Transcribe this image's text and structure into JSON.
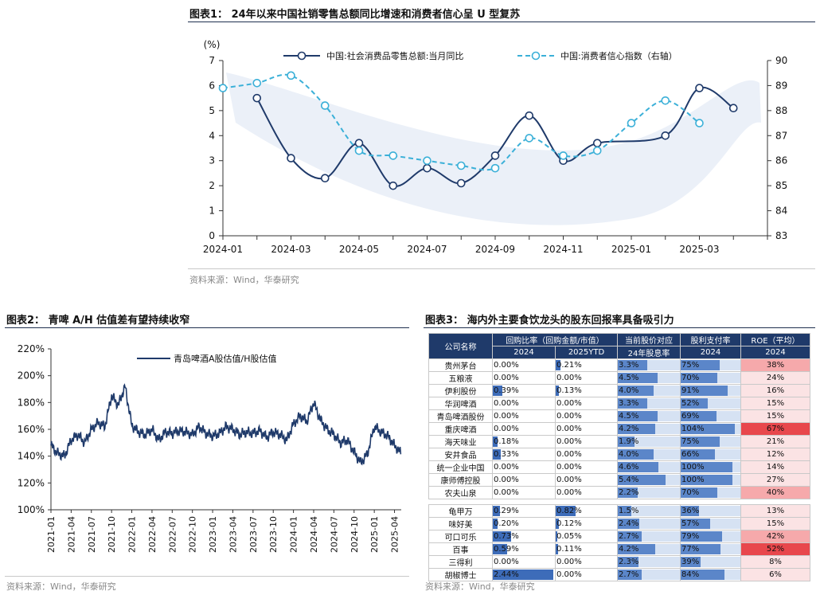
{
  "figure1": {
    "title": "图表1： 24年以来中国社销零售总额同比增速和消费者信心呈 U 型复苏",
    "source": "资料来源：Wind，华泰研究",
    "chart_data": {
      "type": "line",
      "y_unit_label": "(%)",
      "ylim": [
        0,
        7
      ],
      "y_ticks": [
        0,
        1,
        2,
        3,
        4,
        5,
        6,
        7
      ],
      "y2lim": [
        83,
        90
      ],
      "y2_ticks": [
        83,
        84,
        85,
        86,
        87,
        88,
        89,
        90
      ],
      "x_ticks": [
        "2024-01",
        "2024-03",
        "2024-05",
        "2024-07",
        "2024-09",
        "2024-11",
        "2025-01",
        "2025-03"
      ],
      "legend_position": "top-center",
      "series": [
        {
          "name": "中国:社会消费品零售总额:当月同比",
          "axis": "left",
          "color": "#1f3a6a",
          "x": [
            "2024-02",
            "2024-03",
            "2024-04",
            "2024-05",
            "2024-06",
            "2024-07",
            "2024-08",
            "2024-09",
            "2024-10",
            "2024-11",
            "2024-12",
            "2025-02",
            "2025-03",
            "2025-04"
          ],
          "values": [
            5.5,
            3.1,
            2.3,
            3.7,
            2.0,
            2.7,
            2.1,
            3.2,
            4.8,
            3.0,
            3.7,
            4.0,
            5.9,
            5.1
          ]
        },
        {
          "name": "中国:消费者信心指数（右轴）",
          "axis": "right",
          "color": "#3bb0d8",
          "x": [
            "2024-01",
            "2024-02",
            "2024-03",
            "2024-04",
            "2024-05",
            "2024-06",
            "2024-07",
            "2024-08",
            "2024-09",
            "2024-10",
            "2024-11",
            "2024-12",
            "2025-01",
            "2025-02",
            "2025-03"
          ],
          "values": [
            88.9,
            89.1,
            89.4,
            88.2,
            86.4,
            86.2,
            86.0,
            85.8,
            85.7,
            86.9,
            86.2,
            86.4,
            87.5,
            88.4,
            87.5
          ]
        }
      ]
    }
  },
  "figure2": {
    "title": "图表2： 青啤 A/H 估值差有望持续收窄",
    "source": "资料来源：Wind，华泰研究",
    "chart_data": {
      "type": "line",
      "ylim": [
        100,
        220
      ],
      "y_ticks": [
        "100%",
        "120%",
        "140%",
        "160%",
        "180%",
        "200%",
        "220%"
      ],
      "x_ticks": [
        "2021-01",
        "2021-04",
        "2021-07",
        "2021-10",
        "2022-01",
        "2022-04",
        "2022-07",
        "2022-10",
        "2023-01",
        "2023-04",
        "2023-07",
        "2023-10",
        "2024-01",
        "2024-04",
        "2024-07",
        "2024-10",
        "2025-01",
        "2025-04"
      ],
      "legend_position": "top-left",
      "series": [
        {
          "name": "青岛啤酒A股估值/H股估值",
          "color": "#1f3a6a",
          "x": [
            "2021-01",
            "2021-02",
            "2021-03",
            "2021-04",
            "2021-05",
            "2021-06",
            "2021-07",
            "2021-08",
            "2021-09",
            "2021-10",
            "2021-11",
            "2021-12",
            "2022-01",
            "2022-02",
            "2022-03",
            "2022-04",
            "2022-05",
            "2022-06",
            "2022-07",
            "2022-08",
            "2022-09",
            "2022-10",
            "2022-11",
            "2022-12",
            "2023-01",
            "2023-02",
            "2023-03",
            "2023-04",
            "2023-05",
            "2023-06",
            "2023-07",
            "2023-08",
            "2023-09",
            "2023-10",
            "2023-11",
            "2023-12",
            "2024-01",
            "2024-02",
            "2024-03",
            "2024-04",
            "2024-05",
            "2024-06",
            "2024-07",
            "2024-08",
            "2024-09",
            "2024-10",
            "2024-11",
            "2024-12",
            "2025-01",
            "2025-02",
            "2025-03",
            "2025-04",
            "2025-05"
          ],
          "values": [
            148,
            142,
            140,
            152,
            156,
            150,
            160,
            165,
            162,
            185,
            178,
            192,
            163,
            158,
            156,
            160,
            152,
            158,
            157,
            159,
            158,
            156,
            162,
            157,
            155,
            157,
            162,
            160,
            156,
            158,
            157,
            159,
            154,
            158,
            156,
            152,
            164,
            170,
            166,
            180,
            167,
            160,
            156,
            150,
            152,
            143,
            135,
            142,
            162,
            158,
            155,
            148,
            142
          ]
        }
      ]
    }
  },
  "figure3": {
    "title": "图表3： 海内外主要食饮龙头的股东回报率具备吸引力",
    "source": "资料来源：Wind，华泰研究",
    "header_row1": [
      "公司名称",
      "回购比率（回购金额/市值）",
      "当前股价对应",
      "股利支付率",
      "ROE（平均）"
    ],
    "header_row2": [
      "2024",
      "2025YTD",
      "24年股息率",
      "2024",
      "2024"
    ],
    "group1": [
      {
        "name": "贵州茅台",
        "bb24": "0.00%",
        "bb25": "0.21%",
        "dy": "3.3%",
        "payout": "75%",
        "roe": "38%"
      },
      {
        "name": "五粮液",
        "bb24": "0.00%",
        "bb25": "0.00%",
        "dy": "4.5%",
        "payout": "70%",
        "roe": "24%"
      },
      {
        "name": "伊利股份",
        "bb24": "0.39%",
        "bb25": "0.13%",
        "dy": "4.0%",
        "payout": "91%",
        "roe": "16%"
      },
      {
        "name": "华润啤酒",
        "bb24": "0.00%",
        "bb25": "0.00%",
        "dy": "3.3%",
        "payout": "52%",
        "roe": "15%"
      },
      {
        "name": "青岛啤酒股份",
        "bb24": "0.00%",
        "bb25": "0.00%",
        "dy": "4.5%",
        "payout": "69%",
        "roe": "15%"
      },
      {
        "name": "重庆啤酒",
        "bb24": "0.00%",
        "bb25": "0.00%",
        "dy": "4.2%",
        "payout": "104%",
        "roe": "67%"
      },
      {
        "name": "海天味业",
        "bb24": "0.18%",
        "bb25": "0.00%",
        "dy": "1.9%",
        "payout": "75%",
        "roe": "21%"
      },
      {
        "name": "安井食品",
        "bb24": "0.33%",
        "bb25": "0.00%",
        "dy": "4.0%",
        "payout": "66%",
        "roe": "12%"
      },
      {
        "name": "统一企业中国",
        "bb24": "0.00%",
        "bb25": "0.00%",
        "dy": "4.6%",
        "payout": "100%",
        "roe": "14%"
      },
      {
        "name": "康师傅控股",
        "bb24": "0.00%",
        "bb25": "0.00%",
        "dy": "5.4%",
        "payout": "100%",
        "roe": "27%"
      },
      {
        "name": "农夫山泉",
        "bb24": "0.00%",
        "bb25": "0.00%",
        "dy": "2.2%",
        "payout": "70%",
        "roe": "40%"
      }
    ],
    "group2": [
      {
        "name": "龟甲万",
        "bb24": "0.29%",
        "bb25": "0.82%",
        "dy": "1.5%",
        "payout": "36%",
        "roe": "13%"
      },
      {
        "name": "味好美",
        "bb24": "0.20%",
        "bb25": "0.12%",
        "dy": "2.4%",
        "payout": "57%",
        "roe": "15%"
      },
      {
        "name": "可口可乐",
        "bb24": "0.73%",
        "bb25": "0.05%",
        "dy": "2.7%",
        "payout": "79%",
        "roe": "42%"
      },
      {
        "name": "百事",
        "bb24": "0.59%",
        "bb25": "0.11%",
        "dy": "4.2%",
        "payout": "77%",
        "roe": "52%"
      },
      {
        "name": "三得利",
        "bb24": "0.00%",
        "bb25": "0.00%",
        "dy": "2.3%",
        "payout": "39%",
        "roe": "8%"
      },
      {
        "name": "胡椒博士",
        "bb24": "2.44%",
        "bb25": "0.00%",
        "dy": "2.7%",
        "payout": "84%",
        "roe": "6%"
      }
    ],
    "colors": {
      "header_bg": "#1f3a6a",
      "bar_dark": "#3d6cb9",
      "bar_mid": "#5b86c9",
      "bar_light": "#d6e2f3",
      "roe_high": "#e8474c",
      "roe_mid": "#f6a9ab",
      "roe_low": "#fbe3e4"
    }
  }
}
